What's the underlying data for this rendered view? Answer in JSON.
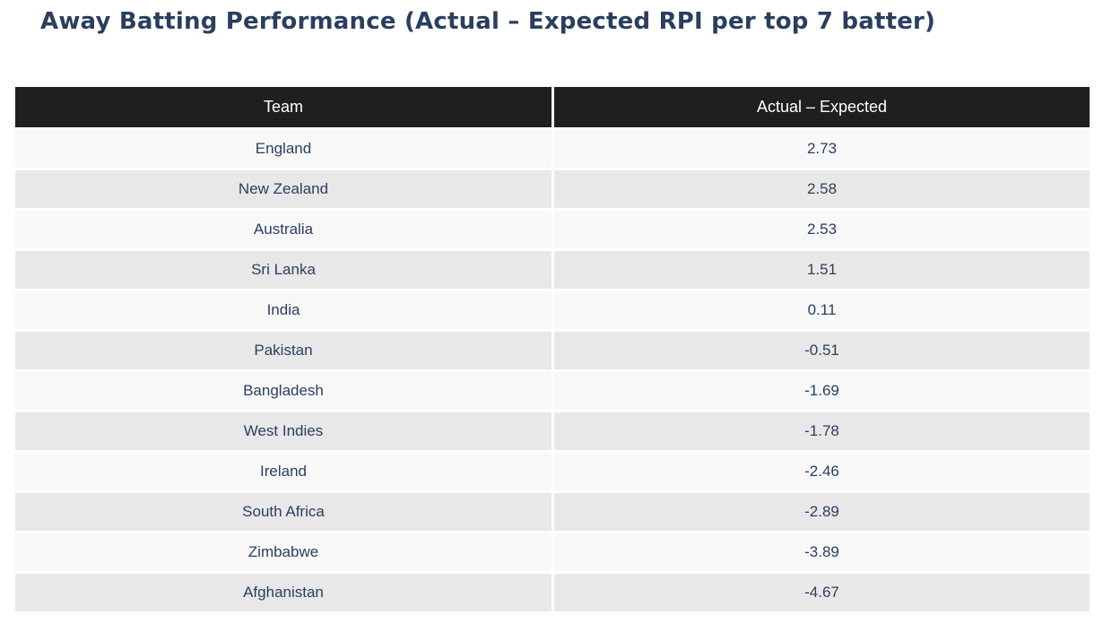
{
  "title": "Away Batting Performance (Actual – Expected RPI per top 7 batter)",
  "colors": {
    "title_text": "#2a3f5f",
    "header_bg": "#1f1f1f",
    "header_text": "#ffffff",
    "row_odd_bg": "#f8f8f9",
    "row_even_bg": "#e8e8e8",
    "cell_text": "#2a3f5f",
    "row_gap": "#ffffff"
  },
  "chart_data": {
    "type": "table",
    "title": "Away Batting Performance (Actual – Expected RPI per top 7 batter)",
    "columns": [
      "Team",
      "Actual – Expected"
    ],
    "rows": [
      {
        "team": "England",
        "value": 2.73
      },
      {
        "team": "New Zealand",
        "value": 2.58
      },
      {
        "team": "Australia",
        "value": 2.53
      },
      {
        "team": "Sri Lanka",
        "value": 1.51
      },
      {
        "team": "India",
        "value": 0.11
      },
      {
        "team": "Pakistan",
        "value": -0.51
      },
      {
        "team": "Bangladesh",
        "value": -1.69
      },
      {
        "team": "West Indies",
        "value": -1.78
      },
      {
        "team": "Ireland",
        "value": -2.46
      },
      {
        "team": "South Africa",
        "value": -2.89
      },
      {
        "team": "Zimbabwe",
        "value": -3.89
      },
      {
        "team": "Afghanistan",
        "value": -4.67
      }
    ]
  }
}
